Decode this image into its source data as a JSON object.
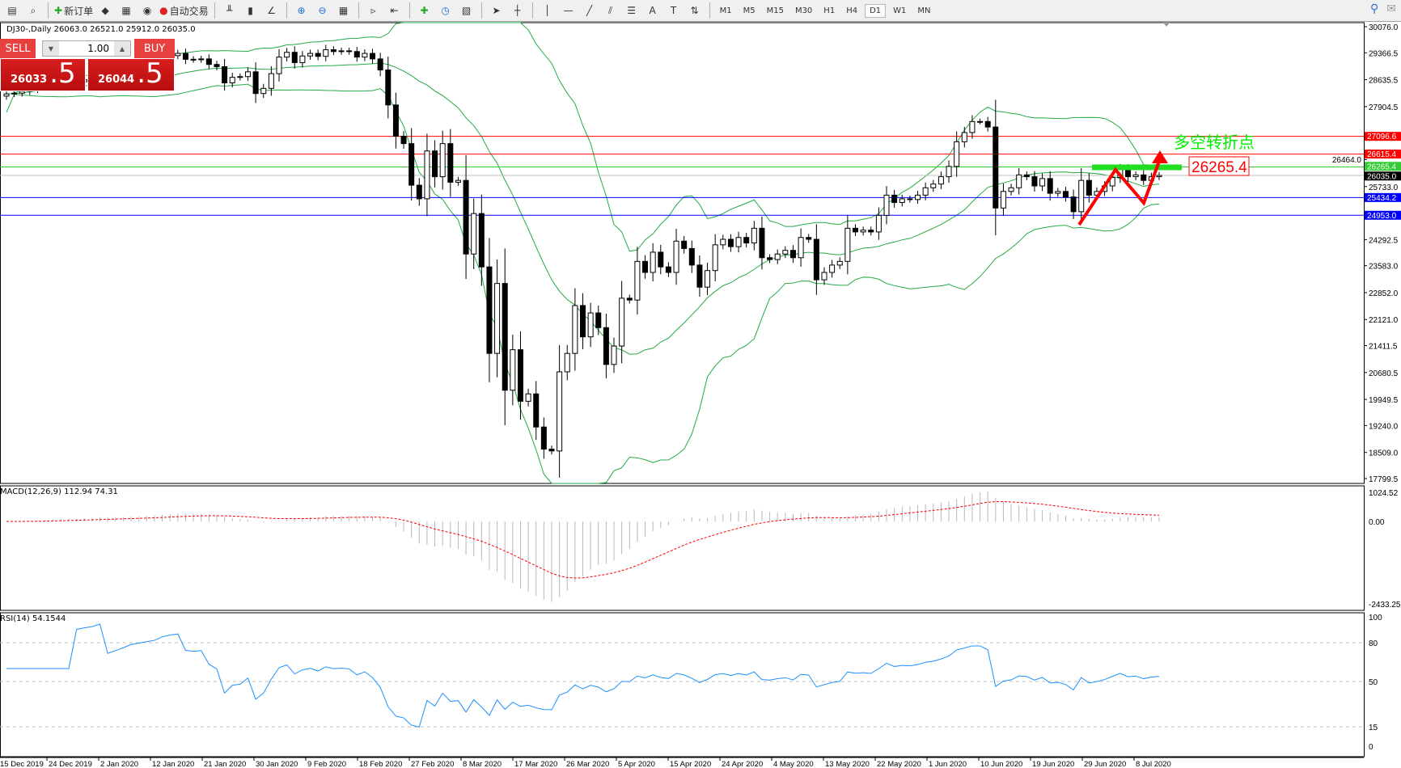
{
  "toolbar": {
    "new_order": "新订单",
    "auto_trading": "自动交易",
    "icons": [
      "window-icon",
      "zoom-chart-icon",
      "new-order-icon",
      "metaeditor-icon",
      "navigator-icon",
      "signals-icon",
      "auto-trading-icon",
      "bar-chart-icon",
      "candlestick-icon",
      "line-chart-icon",
      "zoom-in-icon",
      "zoom-out-icon",
      "tile-windows-icon",
      "auto-scroll-icon",
      "chart-shift-icon",
      "indicators-icon",
      "periods-icon",
      "templates-icon",
      "cursor-icon",
      "crosshair-icon",
      "vertical-line-icon",
      "horizontal-line-icon",
      "trendline-icon",
      "equidistant-channel-icon",
      "fibonacci-icon",
      "text-icon",
      "text-label-icon",
      "arrows-icon"
    ],
    "timeframes": [
      "M1",
      "M5",
      "M15",
      "M30",
      "H1",
      "H4",
      "D1",
      "W1",
      "MN"
    ],
    "active_timeframe": "D1"
  },
  "chart": {
    "header": "DJ30-,Daily  26063.0 26521.0 25912.0 26035.0",
    "symbol": "DJ30-",
    "period": "Daily",
    "price_axis": [
      "30076.0",
      "29366.5",
      "28635.5",
      "27904.5",
      "24292.5",
      "23583.0",
      "22852.0",
      "22121.0",
      "21411.5",
      "20680.5",
      "19949.5",
      "19240.0",
      "18509.0",
      "17799.5",
      "25733.0",
      "26464.0"
    ],
    "price_range": [
      17799.5,
      30076.0
    ],
    "levels": [
      {
        "value": 27096.6,
        "label": "27096.6",
        "color": "#ff0000"
      },
      {
        "value": 26615.4,
        "label": "26615.4",
        "color": "#ff0000"
      },
      {
        "value": 26265.4,
        "label": "26265.4",
        "color": "#32cd32"
      },
      {
        "value": 26035.0,
        "label": "26035.0",
        "color": "#000000",
        "line": "#c0c0c0"
      },
      {
        "value": 25434.2,
        "label": "25434.2",
        "color": "#0000ff"
      },
      {
        "value": 24953.0,
        "label": "24953.0",
        "color": "#0000ff"
      }
    ],
    "annotation_text": "多空转折点",
    "annotation_price_box": "26265.4",
    "annotation_color": "#00ee00",
    "bollinger_color": "#22aa44",
    "dates": [
      "15 Dec 2019",
      "24 Dec 2019",
      "2 Jan 2020",
      "12 Jan 2020",
      "21 Jan 2020",
      "30 Jan 2020",
      "9 Feb 2020",
      "18 Feb 2020",
      "27 Feb 2020",
      "8 Mar 2020",
      "17 Mar 2020",
      "26 Mar 2020",
      "5 Apr 2020",
      "15 Apr 2020",
      "24 Apr 2020",
      "4 May 2020",
      "13 May 2020",
      "22 May 2020",
      "1 Jun 2020",
      "10 Jun 2020",
      "19 Jun 2020",
      "29 Jun 2020",
      "8 Jul 2020"
    ],
    "closes": [
      28250,
      28270,
      28320,
      28380,
      28450,
      28500,
      28540,
      28600,
      28620,
      28580,
      28640,
      28700,
      28870,
      28650,
      28720,
      28800,
      28900,
      28950,
      29000,
      29050,
      29200,
      29290,
      29350,
      29190,
      29180,
      29200,
      29050,
      28990,
      28550,
      28700,
      28720,
      28850,
      28260,
      28400,
      28800,
      29250,
      29380,
      29100,
      29280,
      29350,
      29270,
      29450,
      29400,
      29420,
      29400,
      29250,
      29350,
      29200,
      28900,
      27950,
      27100,
      26900,
      25770,
      25400,
      26700,
      26000,
      26900,
      25850,
      25900,
      23900,
      25000,
      23550,
      21200,
      23100,
      20200,
      21300,
      19900,
      20100,
      19200,
      18600,
      18550,
      20700,
      21200,
      22500,
      21650,
      22300,
      21900,
      20900,
      21400,
      22700,
      22650,
      23700,
      23400,
      23950,
      23550,
      23400,
      24250,
      24050,
      23600,
      23000,
      23450,
      24150,
      24300,
      24100,
      24350,
      24200,
      24600,
      23800,
      23750,
      23900,
      24000,
      23800,
      24350,
      24300,
      23200,
      23400,
      23600,
      23700,
      24600,
      24500,
      24550,
      24500,
      24950,
      25500,
      25300,
      25400,
      25380,
      25500,
      25700,
      25800,
      26000,
      26280,
      26950,
      27200,
      27500,
      27500,
      27350,
      25150,
      25600,
      25700,
      26050,
      26000,
      25750,
      25950,
      25550,
      25600,
      25450,
      25050,
      25900,
      25500,
      25600,
      25750,
      25980,
      26200,
      26000,
      26050,
      25900,
      26000,
      26035
    ]
  },
  "trade_panel": {
    "sell_label": "SELL",
    "buy_label": "BUY",
    "lot": "1.00",
    "sell_big": "26033",
    "sell_small": ".5",
    "buy_big": "26044",
    "buy_small": ".5"
  },
  "macd": {
    "header": "MACD(12,26,9) 112.94 74.31",
    "axis": [
      "1024.52",
      "0.00",
      "-2433.25"
    ],
    "signal_color": "#ff0000"
  },
  "rsi": {
    "header": "RSI(14) 54.1544",
    "axis": [
      "100",
      "80",
      "50",
      "15",
      "0"
    ],
    "line_color": "#1e90ff"
  }
}
